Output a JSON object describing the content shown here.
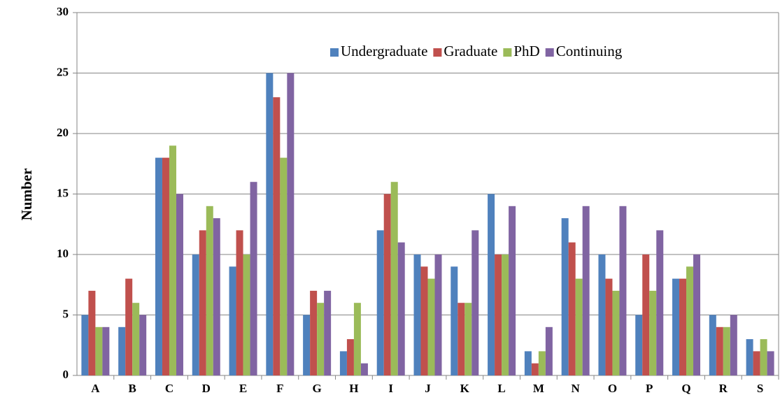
{
  "chart_data": {
    "type": "bar",
    "y_label": "Number",
    "categories": [
      "A",
      "B",
      "C",
      "D",
      "E",
      "F",
      "G",
      "H",
      "I",
      "J",
      "K",
      "L",
      "M",
      "N",
      "O",
      "P",
      "Q",
      "R",
      "S"
    ],
    "series": [
      {
        "name": "Undergraduate",
        "color": "#4f81bd",
        "values": [
          5,
          4,
          18,
          10,
          9,
          25,
          5,
          2,
          12,
          10,
          9,
          15,
          2,
          13,
          10,
          5,
          8,
          5,
          3
        ]
      },
      {
        "name": "Graduate",
        "color": "#c0504d",
        "values": [
          7,
          8,
          18,
          12,
          12,
          23,
          7,
          3,
          15,
          9,
          6,
          10,
          1,
          11,
          8,
          10,
          8,
          4,
          2
        ]
      },
      {
        "name": "PhD",
        "color": "#9bbb59",
        "values": [
          4,
          6,
          19,
          14,
          10,
          18,
          6,
          6,
          16,
          8,
          6,
          10,
          2,
          8,
          7,
          7,
          9,
          4,
          3
        ]
      },
      {
        "name": "Continuing",
        "color": "#8064a2",
        "values": [
          4,
          5,
          15,
          13,
          16,
          25,
          7,
          1,
          11,
          10,
          12,
          14,
          4,
          14,
          14,
          12,
          10,
          5,
          2
        ]
      }
    ],
    "ylim": [
      0,
      30
    ],
    "yticks": [
      0,
      5,
      10,
      15,
      20,
      25,
      30
    ],
    "grid": true,
    "legend": "top-right"
  }
}
